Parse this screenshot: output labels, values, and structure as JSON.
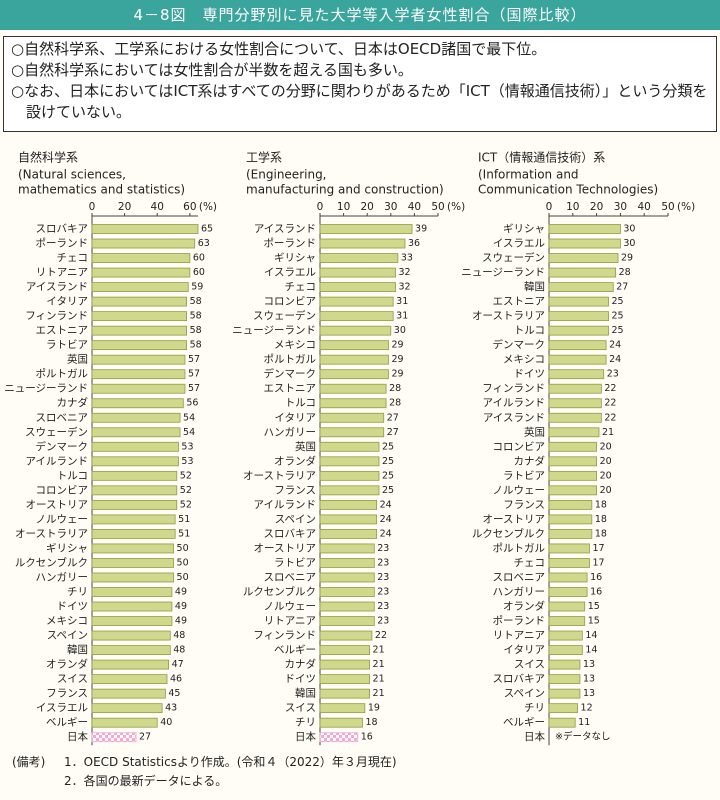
{
  "header": {
    "title": "4－8図　専門分野別に見た大学等入学者女性割合（国際比較）"
  },
  "summary": [
    "○自然科学系、工学系における女性割合について、日本はOECD諸国で最下位。",
    "○自然科学系においては女性割合が半数を超える国も多い。",
    "○なお、日本においてはICT系はすべての分野に関わりがあるため「ICT（情報通信技術）」という分類を設けていない。"
  ],
  "chart_data": [
    {
      "type": "hbar",
      "title": "自然科学系",
      "subtitle": [
        "(Natural sciences,",
        "mathematics and statistics)"
      ],
      "unit": "(%)",
      "xlim": [
        0,
        65
      ],
      "xticks": [
        0,
        20,
        40,
        60
      ],
      "color": "#cfd98b",
      "highlight": "日本",
      "highlight_color": "#f5a9cf",
      "categories": [
        "スロバキア",
        "ポーランド",
        "チェコ",
        "リトアニア",
        "アイスランド",
        "イタリア",
        "フィンランド",
        "エストニア",
        "ラトビア",
        "英国",
        "ポルトガル",
        "ニュージーランド",
        "カナダ",
        "スロベニア",
        "スウェーデン",
        "デンマーク",
        "アイルランド",
        "トルコ",
        "コロンビア",
        "オーストリア",
        "ノルウェー",
        "オーストラリア",
        "ギリシャ",
        "ルクセンブルク",
        "ハンガリー",
        "チリ",
        "ドイツ",
        "メキシコ",
        "スペイン",
        "韓国",
        "オランダ",
        "スイス",
        "フランス",
        "イスラエル",
        "ベルギー",
        "日本"
      ],
      "values": [
        65,
        63,
        60,
        60,
        59,
        58,
        58,
        58,
        58,
        57,
        57,
        57,
        56,
        54,
        54,
        53,
        53,
        52,
        52,
        52,
        51,
        51,
        50,
        50,
        50,
        49,
        49,
        49,
        48,
        48,
        47,
        46,
        45,
        43,
        40,
        27
      ]
    },
    {
      "type": "hbar",
      "title": "工学系",
      "subtitle": [
        "(Engineering,",
        "manufacturing and construction)"
      ],
      "unit": "(%)",
      "xlim": [
        0,
        50
      ],
      "xticks": [
        0,
        10,
        20,
        30,
        40,
        50
      ],
      "color": "#cfd98b",
      "highlight": "日本",
      "highlight_color": "#f5a9cf",
      "categories": [
        "アイスランド",
        "ポーランド",
        "ギリシャ",
        "イスラエル",
        "チェコ",
        "コロンビア",
        "スウェーデン",
        "ニュージーランド",
        "メキシコ",
        "ポルトガル",
        "デンマーク",
        "エストニア",
        "トルコ",
        "イタリア",
        "ハンガリー",
        "英国",
        "オランダ",
        "オーストラリア",
        "フランス",
        "アイルランド",
        "スペイン",
        "スロバキア",
        "オーストリア",
        "ラトビア",
        "スロベニア",
        "ルクセンブルク",
        "ノルウェー",
        "リトアニア",
        "フィンランド",
        "ベルギー",
        "カナダ",
        "ドイツ",
        "韓国",
        "スイス",
        "チリ",
        "日本"
      ],
      "values": [
        39,
        36,
        33,
        32,
        32,
        31,
        31,
        30,
        29,
        29,
        29,
        28,
        28,
        27,
        27,
        25,
        25,
        25,
        25,
        24,
        24,
        24,
        23,
        23,
        23,
        23,
        23,
        23,
        22,
        21,
        21,
        21,
        21,
        19,
        18,
        16
      ]
    },
    {
      "type": "hbar",
      "title": "ICT（情報通信技術）系",
      "subtitle": [
        "(Information and",
        "Communication Technologies)"
      ],
      "unit": "(%)",
      "xlim": [
        0,
        50
      ],
      "xticks": [
        0,
        10,
        20,
        30,
        40,
        50
      ],
      "color": "#cfd98b",
      "highlight": "日本",
      "highlight_color": "#f5a9cf",
      "annotation": "※データなし",
      "annotation_color": "#e8412c",
      "categories": [
        "ギリシャ",
        "イスラエル",
        "スウェーデン",
        "ニュージーランド",
        "韓国",
        "エストニア",
        "オーストラリア",
        "トルコ",
        "デンマーク",
        "メキシコ",
        "ドイツ",
        "フィンランド",
        "アイルランド",
        "アイスランド",
        "英国",
        "コロンビア",
        "カナダ",
        "ラトビア",
        "ノルウェー",
        "フランス",
        "オーストリア",
        "ルクセンブルク",
        "ポルトガル",
        "チェコ",
        "スロベニア",
        "ハンガリー",
        "オランダ",
        "ポーランド",
        "リトアニア",
        "イタリア",
        "スイス",
        "スロバキア",
        "スペイン",
        "チリ",
        "ベルギー",
        "日本"
      ],
      "values": [
        30,
        30,
        29,
        28,
        27,
        25,
        25,
        25,
        24,
        24,
        23,
        22,
        22,
        22,
        21,
        20,
        20,
        20,
        20,
        18,
        18,
        18,
        17,
        17,
        16,
        16,
        15,
        15,
        14,
        14,
        13,
        13,
        13,
        12,
        11,
        null
      ]
    }
  ],
  "footer": {
    "label": "(備考)",
    "notes": [
      "1．OECD Statisticsより作成。(令和４（2022）年３月現在)",
      "2．各国の最新データによる。"
    ]
  }
}
